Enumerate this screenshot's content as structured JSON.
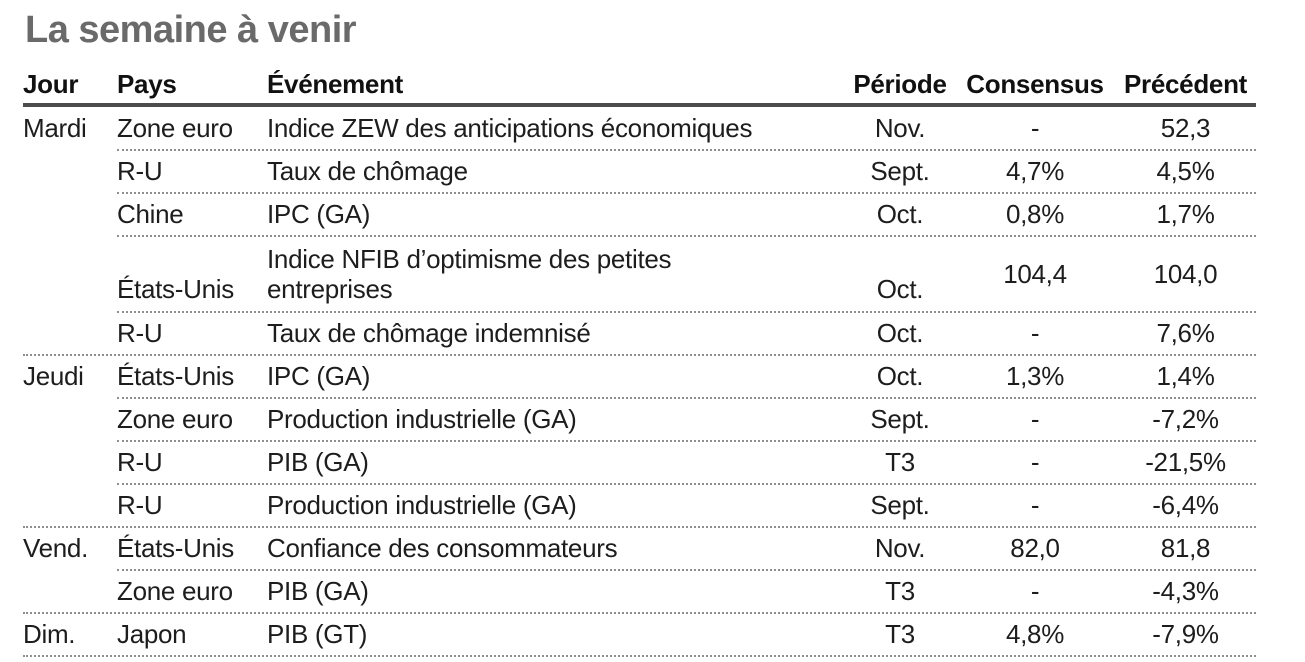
{
  "title": "La semaine à venir",
  "colors": {
    "title_text": "#6a6a6a",
    "body_text": "#1d1d1d",
    "header_rule": "#4d4d4d",
    "dotted_separator": "#8f8f8f"
  },
  "table": {
    "headers": {
      "jour": "Jour",
      "pays": "Pays",
      "evenement": "Événement",
      "periode": "Période",
      "consensus": "Consensus",
      "precedent": "Précédent"
    },
    "rows": [
      {
        "jour": "Mardi",
        "pays": "Zone euro",
        "evenement": "Indice ZEW des anticipations économiques",
        "periode": "Nov.",
        "consensus": "-",
        "precedent": "52,3"
      },
      {
        "jour": "",
        "pays": "R-U",
        "evenement": "Taux de chômage",
        "periode": "Sept.",
        "consensus": "4,7%",
        "precedent": "4,5%"
      },
      {
        "jour": "",
        "pays": "Chine",
        "evenement": "IPC (GA)",
        "periode": "Oct.",
        "consensus": "0,8%",
        "precedent": "1,7%"
      },
      {
        "jour": "",
        "pays": "États-Unis",
        "evenement": "Indice NFIB d’optimisme des petites entreprises",
        "periode": "Oct.",
        "consensus": "104,4",
        "precedent": "104,0"
      },
      {
        "jour": "",
        "pays": "R-U",
        "evenement": "Taux de chômage indemnisé",
        "periode": "Oct.",
        "consensus": "-",
        "precedent": "7,6%"
      },
      {
        "jour": "Jeudi",
        "pays": "États-Unis",
        "evenement": "IPC (GA)",
        "periode": "Oct.",
        "consensus": "1,3%",
        "precedent": "1,4%"
      },
      {
        "jour": "",
        "pays": "Zone euro",
        "evenement": "Production industrielle (GA)",
        "periode": "Sept.",
        "consensus": "-",
        "precedent": "-7,2%"
      },
      {
        "jour": "",
        "pays": "R-U",
        "evenement": "PIB (GA)",
        "periode": "T3",
        "consensus": "-",
        "precedent": "-21,5%"
      },
      {
        "jour": "",
        "pays": "R-U",
        "evenement": "Production industrielle (GA)",
        "periode": "Sept.",
        "consensus": "-",
        "precedent": "-6,4%"
      },
      {
        "jour": "Vend.",
        "pays": "États-Unis",
        "evenement": "Confiance des consommateurs",
        "periode": "Nov.",
        "consensus": "82,0",
        "precedent": "81,8"
      },
      {
        "jour": "",
        "pays": "Zone euro",
        "evenement": "PIB (GA)",
        "periode": "T3",
        "consensus": "-",
        "precedent": "-4,3%"
      },
      {
        "jour": "Dim.",
        "pays": "Japon",
        "evenement": "PIB (GT)",
        "periode": "T3",
        "consensus": "4,8%",
        "precedent": "-7,9%"
      }
    ]
  }
}
